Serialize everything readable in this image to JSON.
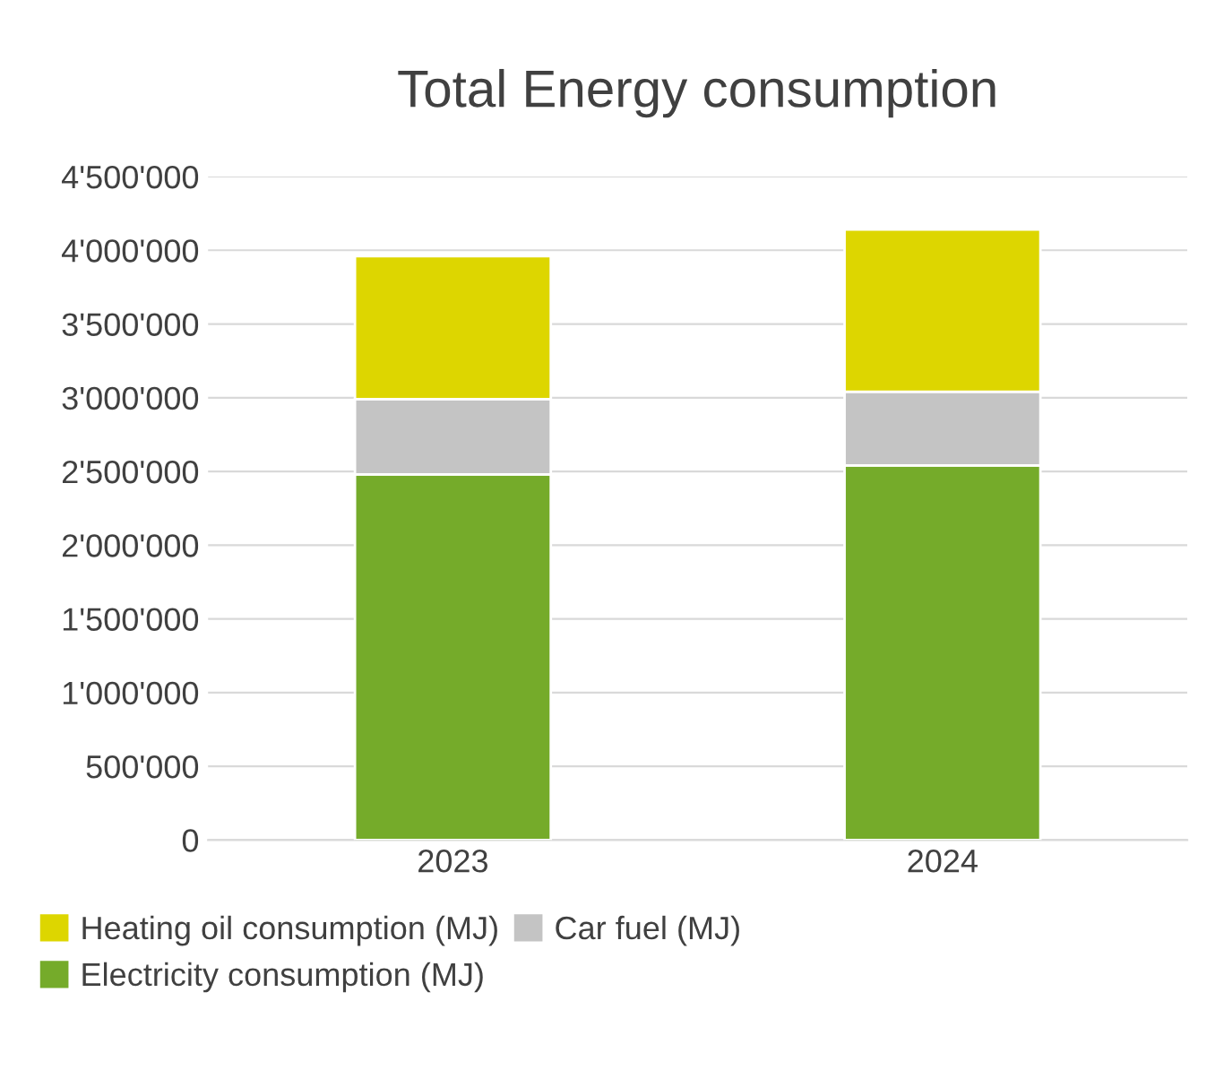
{
  "chart_data": {
    "type": "bar",
    "title": "Total Energy consumption",
    "stacked": true,
    "categories": [
      "2023",
      "2024"
    ],
    "series": [
      {
        "name": "Electricity consumption (MJ)",
        "color": "#75ab2a",
        "values": [
          2480000,
          2540000
        ]
      },
      {
        "name": "Car fuel (MJ)",
        "color": "#c4c4c4",
        "values": [
          510000,
          500000
        ]
      },
      {
        "name": "Heating oil consumption (MJ)",
        "color": "#ddd600",
        "values": [
          970000,
          1100000
        ]
      }
    ],
    "ylim": [
      0,
      4500000
    ],
    "yticks": [
      {
        "value": 0,
        "label": "0"
      },
      {
        "value": 500000,
        "label": "500'000"
      },
      {
        "value": 1000000,
        "label": "1'000'000"
      },
      {
        "value": 1500000,
        "label": "1'500'000"
      },
      {
        "value": 2000000,
        "label": "2'000'000"
      },
      {
        "value": 2500000,
        "label": "2'500'000"
      },
      {
        "value": 3000000,
        "label": "3'000'000"
      },
      {
        "value": 3500000,
        "label": "3'500'000"
      },
      {
        "value": 4000000,
        "label": "4'000'000"
      },
      {
        "value": 4500000,
        "label": "4'500'000"
      }
    ],
    "grid": "y",
    "legend": "bottom"
  }
}
